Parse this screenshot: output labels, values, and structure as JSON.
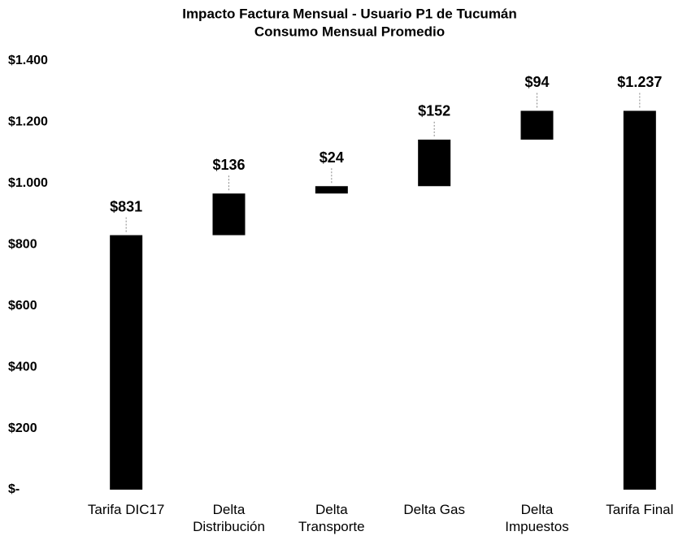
{
  "chart_data": {
    "type": "waterfall",
    "title": "Impacto Factura Mensual - Usuario P1 de Tucumán",
    "subtitle": "Consumo Mensual Promedio",
    "categories": [
      "Tarifa DIC17",
      "Delta Distribución",
      "Delta Transporte",
      "Delta Gas",
      "Delta Impuestos",
      "Tarifa Final"
    ],
    "values": [
      831,
      136,
      24,
      152,
      94,
      1237
    ],
    "value_labels": [
      "$831",
      "$136",
      "$24",
      "$152",
      "$94",
      "$1.237"
    ],
    "is_total": [
      false,
      false,
      false,
      false,
      false,
      true
    ],
    "color": "#000000",
    "ylim": [
      0,
      1400
    ],
    "yticks": [
      {
        "value": 0,
        "label": "$-"
      },
      {
        "value": 200,
        "label": "$200"
      },
      {
        "value": 400,
        "label": "$400"
      },
      {
        "value": 600,
        "label": "$600"
      },
      {
        "value": 800,
        "label": "$800"
      },
      {
        "value": 1000,
        "label": "$1.000"
      },
      {
        "value": 1200,
        "label": "$1.200"
      },
      {
        "value": 1400,
        "label": "$1.400"
      }
    ],
    "grid": false
  }
}
